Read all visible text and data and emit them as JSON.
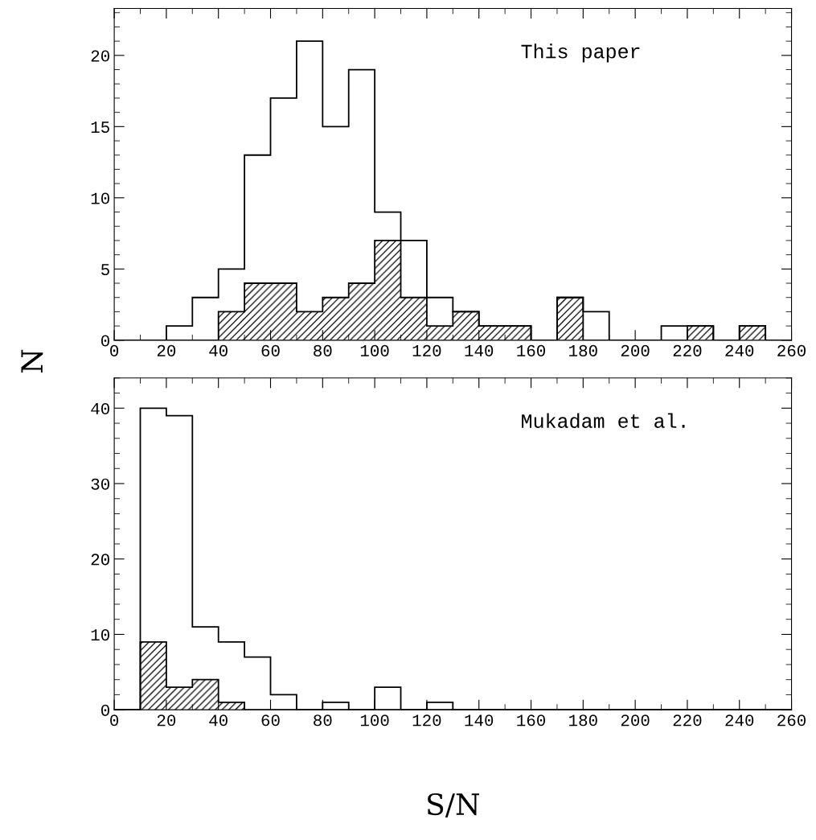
{
  "chart_data": [
    {
      "type": "histogram",
      "ylabel": "N",
      "annotations": [
        "This paper"
      ],
      "bins": [
        0,
        10,
        20,
        30,
        40,
        50,
        60,
        70,
        80,
        90,
        100,
        110,
        120,
        130,
        140,
        150,
        160,
        170,
        180,
        190,
        200,
        210,
        220,
        230,
        240,
        250,
        260
      ],
      "series": [
        {
          "color": "#000000",
          "values": [
            0,
            0,
            1,
            3,
            5,
            13,
            17,
            21,
            15,
            19,
            9,
            7,
            3,
            2,
            1,
            1,
            0,
            3,
            2,
            0,
            0,
            1,
            1,
            0,
            1,
            0
          ]
        },
        {
          "color": "#000000",
          "values": [
            0,
            0,
            0,
            0,
            2,
            4,
            4,
            2,
            3,
            4,
            7,
            3,
            1,
            2,
            1,
            1,
            0,
            3,
            0,
            0,
            0,
            0,
            1,
            0,
            1,
            0
          ]
        }
      ],
      "xlim": [
        0,
        260
      ],
      "xticks": [
        0,
        20,
        40,
        60,
        80,
        100,
        120,
        140,
        160,
        180,
        200,
        220,
        240,
        260
      ],
      "ylim": [
        0,
        23.3
      ],
      "yticks": [
        0,
        5,
        10,
        15,
        20
      ],
      "grid": false,
      "legend": false
    },
    {
      "type": "histogram",
      "xlabel": "S/N",
      "annotations": [
        "Mukadam et al."
      ],
      "bins": [
        0,
        10,
        20,
        30,
        40,
        50,
        60,
        70,
        80,
        90,
        100,
        110,
        120,
        130,
        140,
        150,
        160,
        170,
        180,
        190,
        200,
        210,
        220,
        230,
        240,
        250,
        260
      ],
      "series": [
        {
          "color": "#000000",
          "values": [
            0,
            40,
            39,
            11,
            9,
            7,
            2,
            0,
            1,
            0,
            3,
            0,
            1,
            0,
            0,
            0,
            0,
            0,
            0,
            0,
            0,
            0,
            0,
            0,
            0,
            0
          ]
        },
        {
          "color": "#000000",
          "values": [
            0,
            9,
            3,
            4,
            1,
            0,
            0,
            0,
            0,
            0,
            0,
            0,
            0,
            0,
            0,
            0,
            0,
            0,
            0,
            0,
            0,
            0,
            0,
            0,
            0,
            0
          ]
        }
      ],
      "xlim": [
        0,
        260
      ],
      "xticks": [
        0,
        20,
        40,
        60,
        80,
        100,
        120,
        140,
        160,
        180,
        200,
        220,
        240,
        260
      ],
      "ylim": [
        0,
        44
      ],
      "yticks": [
        0,
        10,
        20,
        30,
        40
      ],
      "grid": false,
      "legend": false
    }
  ]
}
